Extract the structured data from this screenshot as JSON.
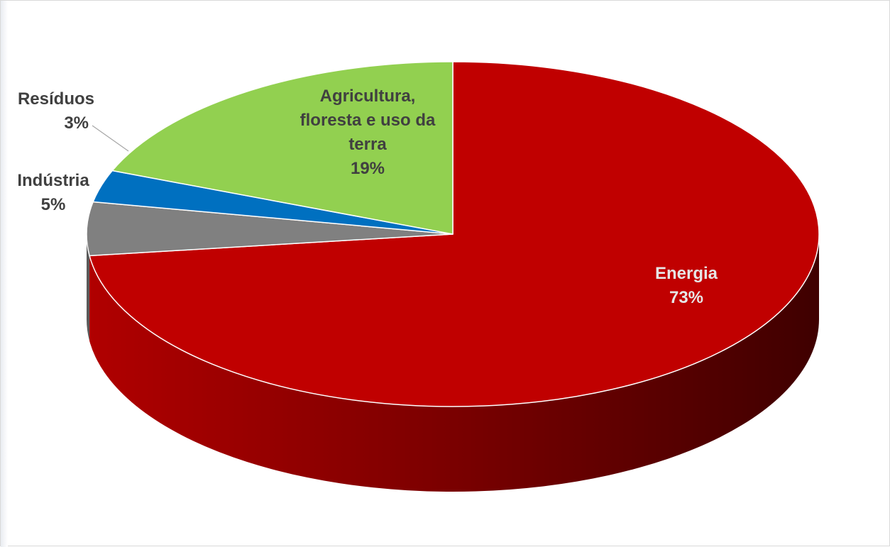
{
  "chart_data": {
    "type": "pie",
    "style": "3d",
    "title": "",
    "slices": [
      {
        "label": "Energia",
        "value": 73,
        "value_label": "73%",
        "color": "#c00000",
        "side_color": "#8b0000",
        "label_color": "#e6e6e6"
      },
      {
        "label": "Indústria",
        "value": 5,
        "value_label": "5%",
        "color": "#808080",
        "side_color": "#5a5a5a",
        "label_color": "#404040"
      },
      {
        "label": "Resíduos",
        "value": 3,
        "value_label": "3%",
        "color": "#0070c0",
        "side_color": "#004f8a",
        "label_color": "#404040"
      },
      {
        "label": "Agricultura, floresta e uso da terra",
        "value": 19,
        "value_label": "19%",
        "color": "#92d050",
        "side_color": "#6f9f3c",
        "label_color": "#404040"
      }
    ],
    "legend": "none",
    "start": "top",
    "direction": "clockwise"
  }
}
